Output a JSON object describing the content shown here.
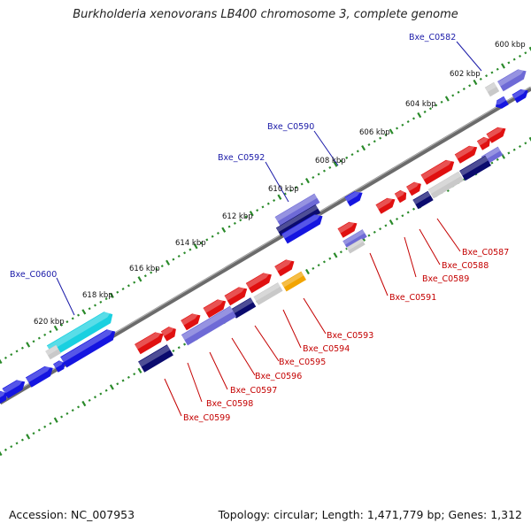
{
  "title": "Burkholderia xenovorans LB400 chromosome 3, complete genome",
  "footer": {
    "accession": "Accession: NC_007953",
    "summary": "Topology: circular; Length: 1,471,779 bp; Genes: 1,312"
  },
  "colors": {
    "backbone": "#6b6b6b",
    "tick": "#2a8a2a",
    "forward_gene": "#3b3bd6",
    "reverse_gene": "#e01010",
    "top_label": "#1a1aa8",
    "bottom_label": "#c40000",
    "cyan_gene": "#19d0e0",
    "orange_gene": "#f2a400"
  },
  "kbp_labels": [
    "600 kbp",
    "602 kbp",
    "604 kbp",
    "606 kbp",
    "608 kbp",
    "610 kbp",
    "612 kbp",
    "614 kbp",
    "616 kbp",
    "618 kbp",
    "620 kbp"
  ],
  "top_gene_labels": [
    "Bxe_C0582",
    "Bxe_C0590",
    "Bxe_C0592",
    "Bxe_C0600"
  ],
  "bottom_gene_labels": [
    "Bxe_C0587",
    "Bxe_C0588",
    "Bxe_C0589",
    "Bxe_C0591",
    "Bxe_C0593",
    "Bxe_C0594",
    "Bxe_C0595",
    "Bxe_C0596",
    "Bxe_C0597",
    "Bxe_C0598",
    "Bxe_C0599"
  ]
}
